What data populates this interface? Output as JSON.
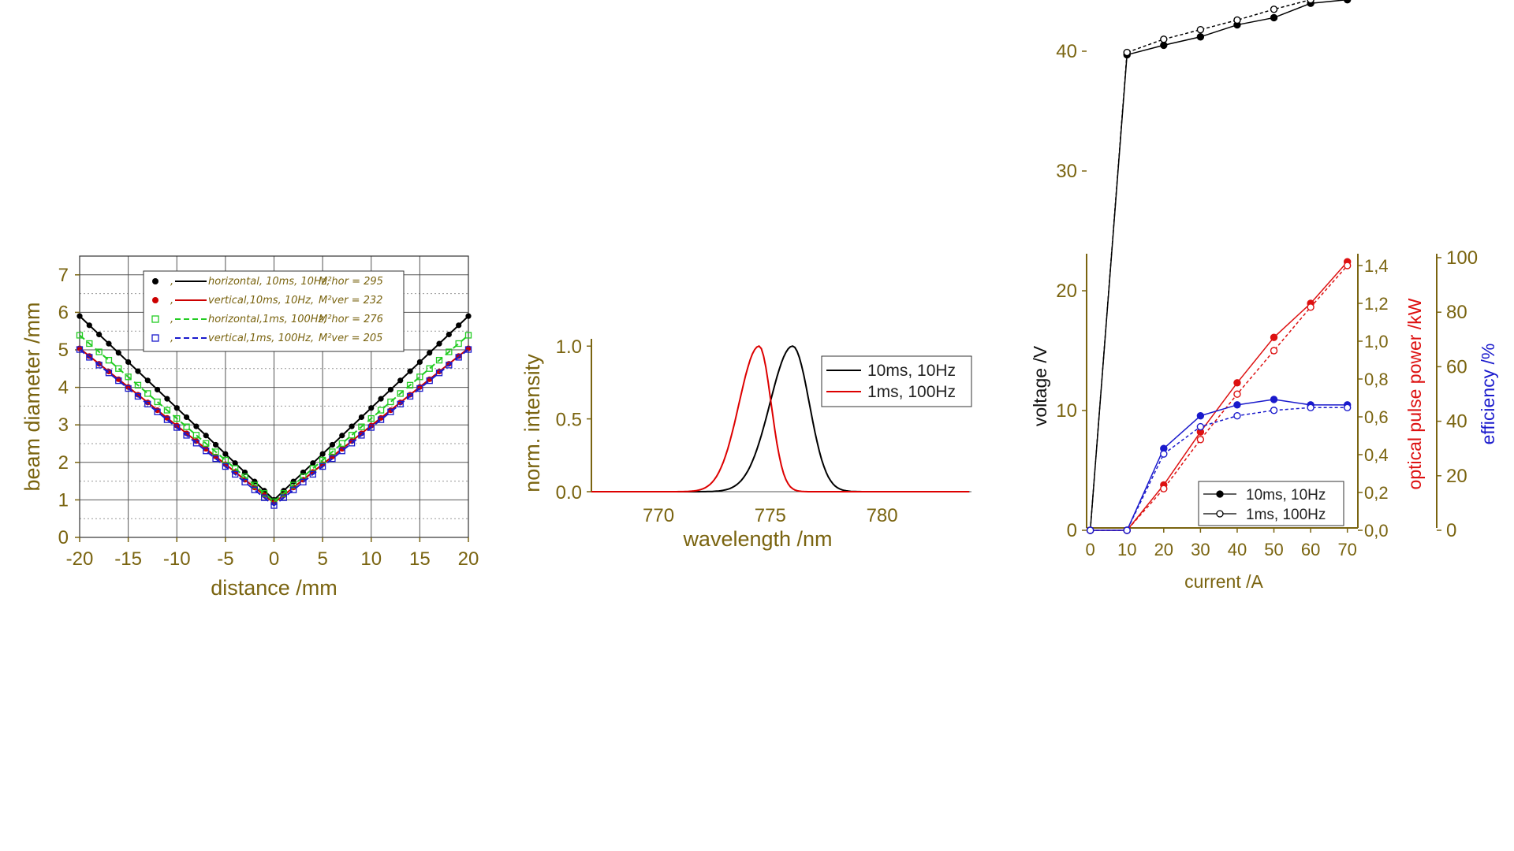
{
  "chart_data": [
    {
      "type": "scatter",
      "xlabel": "distance /mm",
      "ylabel": "beam diameter /mm",
      "xlim": [
        -20,
        20
      ],
      "ylim": [
        0,
        7.5
      ],
      "xticks": [
        "-20",
        "-15",
        "-10",
        "-5",
        "0",
        "5",
        "10",
        "15",
        "20"
      ],
      "yticks": [
        "0",
        "1",
        "2",
        "3",
        "4",
        "5",
        "6",
        "7"
      ],
      "grid": true,
      "legend_position": "top",
      "series": [
        {
          "name": "horizontal, 10ms, 10Hz, M²hor = 295",
          "label": "horizontal, 10ms, 10Hz,",
          "m2_label": "M²hor = 295",
          "color": "#000000",
          "marker": "filled-circle",
          "line": "solid",
          "center": 0,
          "y0": 1.0,
          "slope": 0.245
        },
        {
          "name": "vertical,10ms, 10Hz, M²ver = 232",
          "label": "vertical,10ms, 10Hz,",
          "m2_label": "M²ver = 232",
          "color": "#cc0000",
          "marker": "filled-circle",
          "line": "solid",
          "center": 0,
          "y0": 0.92,
          "slope": 0.206
        },
        {
          "name": "horizontal,1ms, 100Hz, M²hor = 276",
          "label": "horizontal,1ms, 100Hz,",
          "m2_label": "M²hor = 276",
          "color": "#22cc22",
          "marker": "open-square",
          "line": "dashed",
          "center": 0,
          "y0": 0.95,
          "slope": 0.222
        },
        {
          "name": "vertical,1ms, 100Hz, M²ver = 205",
          "label": "vertical,1ms, 100Hz,",
          "m2_label": "M²ver = 205",
          "color": "#1a1acc",
          "marker": "open-square",
          "line": "dashed",
          "center": 0,
          "y0": 0.85,
          "slope": 0.208
        }
      ]
    },
    {
      "type": "line",
      "xlabel": "wavelength /nm",
      "ylabel": "norm. intensity",
      "xlim": [
        767,
        784
      ],
      "ylim": [
        0,
        1.05
      ],
      "xticks": [
        "770",
        "775",
        "780"
      ],
      "yticks": [
        "0.0",
        "0.5",
        "1.0"
      ],
      "legend_position": "top-right",
      "series": [
        {
          "name": "10ms, 10Hz",
          "color": "#000000",
          "peak": 776.0,
          "left_width": 1.7,
          "right_width": 1.25
        },
        {
          "name": "1ms, 100Hz",
          "color": "#dd0000",
          "peak": 774.5,
          "left_width": 1.5,
          "right_width": 0.9
        }
      ]
    },
    {
      "type": "line",
      "xlabel": "current /A",
      "ylabel_left": "voltage /V",
      "ylabel_right1": "optical pulse power /kW",
      "ylabel_right2": "efficiency /%",
      "x": [
        0,
        10,
        20,
        30,
        40,
        50,
        60,
        70
      ],
      "xticks": [
        "0",
        "10",
        "20",
        "30",
        "40",
        "50",
        "60",
        "70"
      ],
      "yticks_left": [
        "0",
        "10",
        "20",
        "30",
        "40"
      ],
      "yticks_right1": [
        "0,0",
        "0,2",
        "0,4",
        "0,6",
        "0,8",
        "1,0",
        "1,2",
        "1,4"
      ],
      "yticks_right2": [
        "0",
        "20",
        "40",
        "60",
        "80",
        "100"
      ],
      "ylim_left": [
        0,
        45
      ],
      "ylim_right1": [
        0,
        1.45
      ],
      "ylim_right2": [
        0,
        100
      ],
      "legend_position": "bottom-right",
      "legend": [
        {
          "name": "10ms, 10Hz",
          "marker": "filled-circle"
        },
        {
          "name": "1ms, 100Hz",
          "marker": "open-circle"
        }
      ],
      "series": [
        {
          "name": "voltage 10ms, 10Hz",
          "axis": "left",
          "color": "#000000",
          "marker": "filled",
          "values": [
            0,
            39.7,
            40.5,
            41.2,
            42.2,
            42.8,
            44.0,
            44.3
          ]
        },
        {
          "name": "voltage 1ms, 100Hz",
          "axis": "left",
          "color": "#000000",
          "marker": "open",
          "values": [
            0,
            39.9,
            41.0,
            41.8,
            42.6,
            43.5,
            44.3,
            45.0
          ]
        },
        {
          "name": "power 10ms, 10Hz",
          "axis": "right1",
          "color": "#dd1111",
          "marker": "filled",
          "values": [
            0,
            0.0,
            0.24,
            0.52,
            0.78,
            1.02,
            1.2,
            1.42
          ]
        },
        {
          "name": "power 1ms, 100Hz",
          "axis": "right1",
          "color": "#dd1111",
          "marker": "open",
          "values": [
            0,
            0.0,
            0.22,
            0.48,
            0.72,
            0.95,
            1.18,
            1.4
          ]
        },
        {
          "name": "efficiency 10ms, 10Hz",
          "axis": "right2",
          "color": "#1a1acc",
          "marker": "filled",
          "values": [
            0,
            0,
            30,
            42,
            46,
            48,
            46,
            46
          ]
        },
        {
          "name": "efficiency 1ms, 100Hz",
          "axis": "right2",
          "color": "#1a1acc",
          "marker": "open",
          "values": [
            0,
            0,
            28,
            38,
            42,
            44,
            45,
            45
          ]
        }
      ]
    }
  ]
}
